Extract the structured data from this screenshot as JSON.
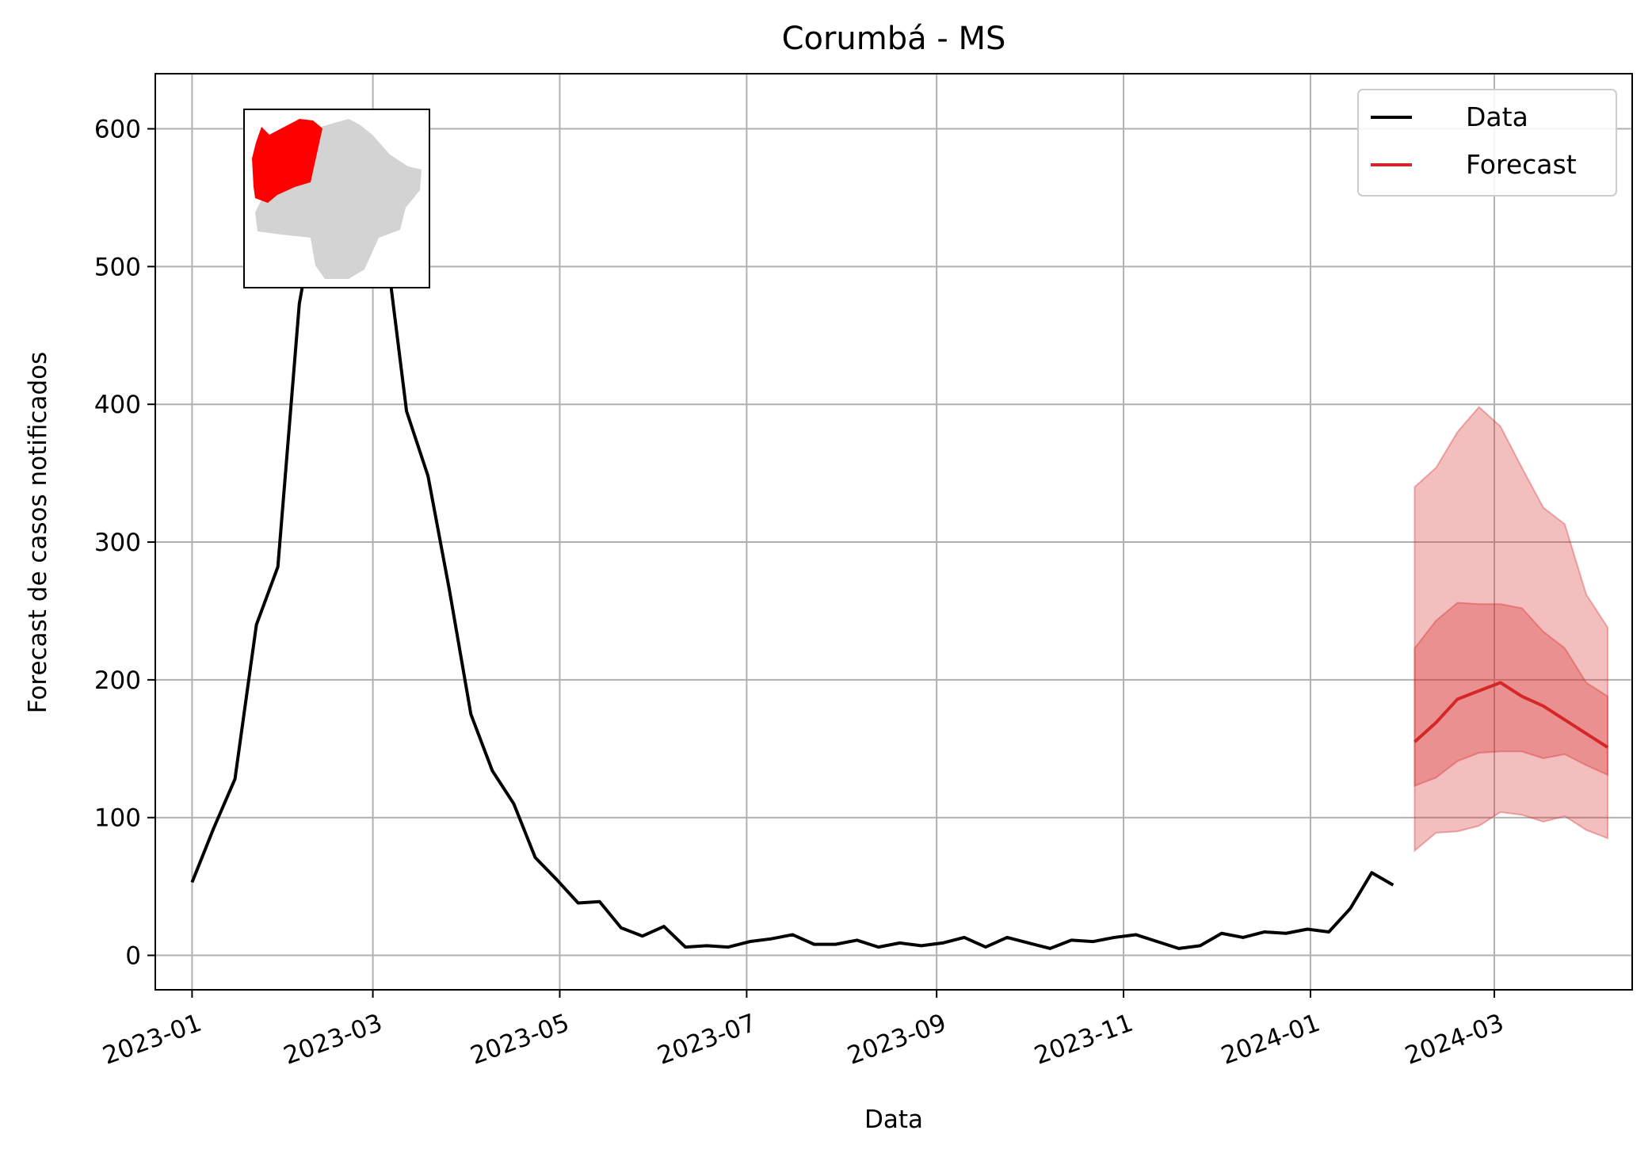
{
  "chart_data": {
    "type": "line",
    "title": "Corumbá - MS",
    "xlabel": "Data",
    "ylabel": "Forecast de casos notificados",
    "xlim": [
      "2022-12-20",
      "2024-04-15"
    ],
    "ylim": [
      -25,
      640
    ],
    "grid": true,
    "legend_position": "top-right",
    "x_ticks": [
      "2023-01-01",
      "2023-03-01",
      "2023-05-01",
      "2023-07-01",
      "2023-09-01",
      "2023-11-01",
      "2024-01-01",
      "2024-03-01"
    ],
    "x_tick_labels": [
      "2023-01",
      "2023-03",
      "2023-05",
      "2023-07",
      "2023-09",
      "2023-11",
      "2024-01",
      "2024-03"
    ],
    "y_ticks": [
      0,
      100,
      200,
      300,
      400,
      500,
      600
    ],
    "y_tick_labels": [
      "0",
      "100",
      "200",
      "300",
      "400",
      "500",
      "600"
    ],
    "series": [
      {
        "name": "Data",
        "color": "#000000",
        "x": [
          "2023-01-01",
          "2023-01-08",
          "2023-01-15",
          "2023-01-22",
          "2023-01-29",
          "2023-02-05",
          "2023-02-12",
          "2023-02-19",
          "2023-02-26",
          "2023-03-05",
          "2023-03-12",
          "2023-03-19",
          "2023-03-26",
          "2023-04-02",
          "2023-04-09",
          "2023-04-16",
          "2023-04-23",
          "2023-04-30",
          "2023-05-07",
          "2023-05-14",
          "2023-05-21",
          "2023-05-28",
          "2023-06-04",
          "2023-06-11",
          "2023-06-18",
          "2023-06-25",
          "2023-07-02",
          "2023-07-09",
          "2023-07-16",
          "2023-07-23",
          "2023-07-30",
          "2023-08-06",
          "2023-08-13",
          "2023-08-20",
          "2023-08-27",
          "2023-09-03",
          "2023-09-10",
          "2023-09-17",
          "2023-09-24",
          "2023-10-01",
          "2023-10-08",
          "2023-10-15",
          "2023-10-22",
          "2023-10-29",
          "2023-11-05",
          "2023-11-12",
          "2023-11-19",
          "2023-11-26",
          "2023-12-03",
          "2023-12-10",
          "2023-12-17",
          "2023-12-24",
          "2023-12-31",
          "2024-01-07",
          "2024-01-14",
          "2024-01-21",
          "2024-01-28"
        ],
        "values": [
          53,
          92,
          128,
          240,
          282,
          473,
          560,
          580,
          575,
          520,
          395,
          348,
          265,
          175,
          134,
          110,
          71,
          55,
          38,
          39,
          20,
          14,
          21,
          6,
          7,
          6,
          10,
          12,
          15,
          8,
          8,
          11,
          6,
          9,
          7,
          9,
          13,
          6,
          13,
          9,
          5,
          11,
          10,
          13,
          15,
          10,
          5,
          7,
          16,
          13,
          17,
          16,
          19,
          17,
          34,
          60,
          51
        ]
      }
    ],
    "forecast": {
      "name": "Forecast",
      "color": "#d62728",
      "x": [
        "2024-02-04",
        "2024-02-11",
        "2024-02-18",
        "2024-02-25",
        "2024-03-03",
        "2024-03-10",
        "2024-03-17",
        "2024-03-24",
        "2024-03-31",
        "2024-04-07"
      ],
      "median": [
        155,
        169,
        186,
        192,
        198,
        188,
        181,
        171,
        161,
        151
      ],
      "lower_50": [
        123,
        129,
        141,
        147,
        148,
        148,
        143,
        146,
        138,
        131
      ],
      "upper_50": [
        223,
        243,
        256,
        255,
        255,
        252,
        235,
        223,
        198,
        188
      ],
      "lower_90": [
        76,
        89,
        90,
        94,
        104,
        102,
        97,
        101,
        91,
        85
      ],
      "upper_90": [
        340,
        354,
        380,
        398,
        384,
        354,
        325,
        313,
        262,
        238
      ]
    },
    "inset_map": {
      "description_icon": "state-map-icon",
      "highlight_color": "#ff0000",
      "base_color": "#d3d3d3"
    }
  }
}
